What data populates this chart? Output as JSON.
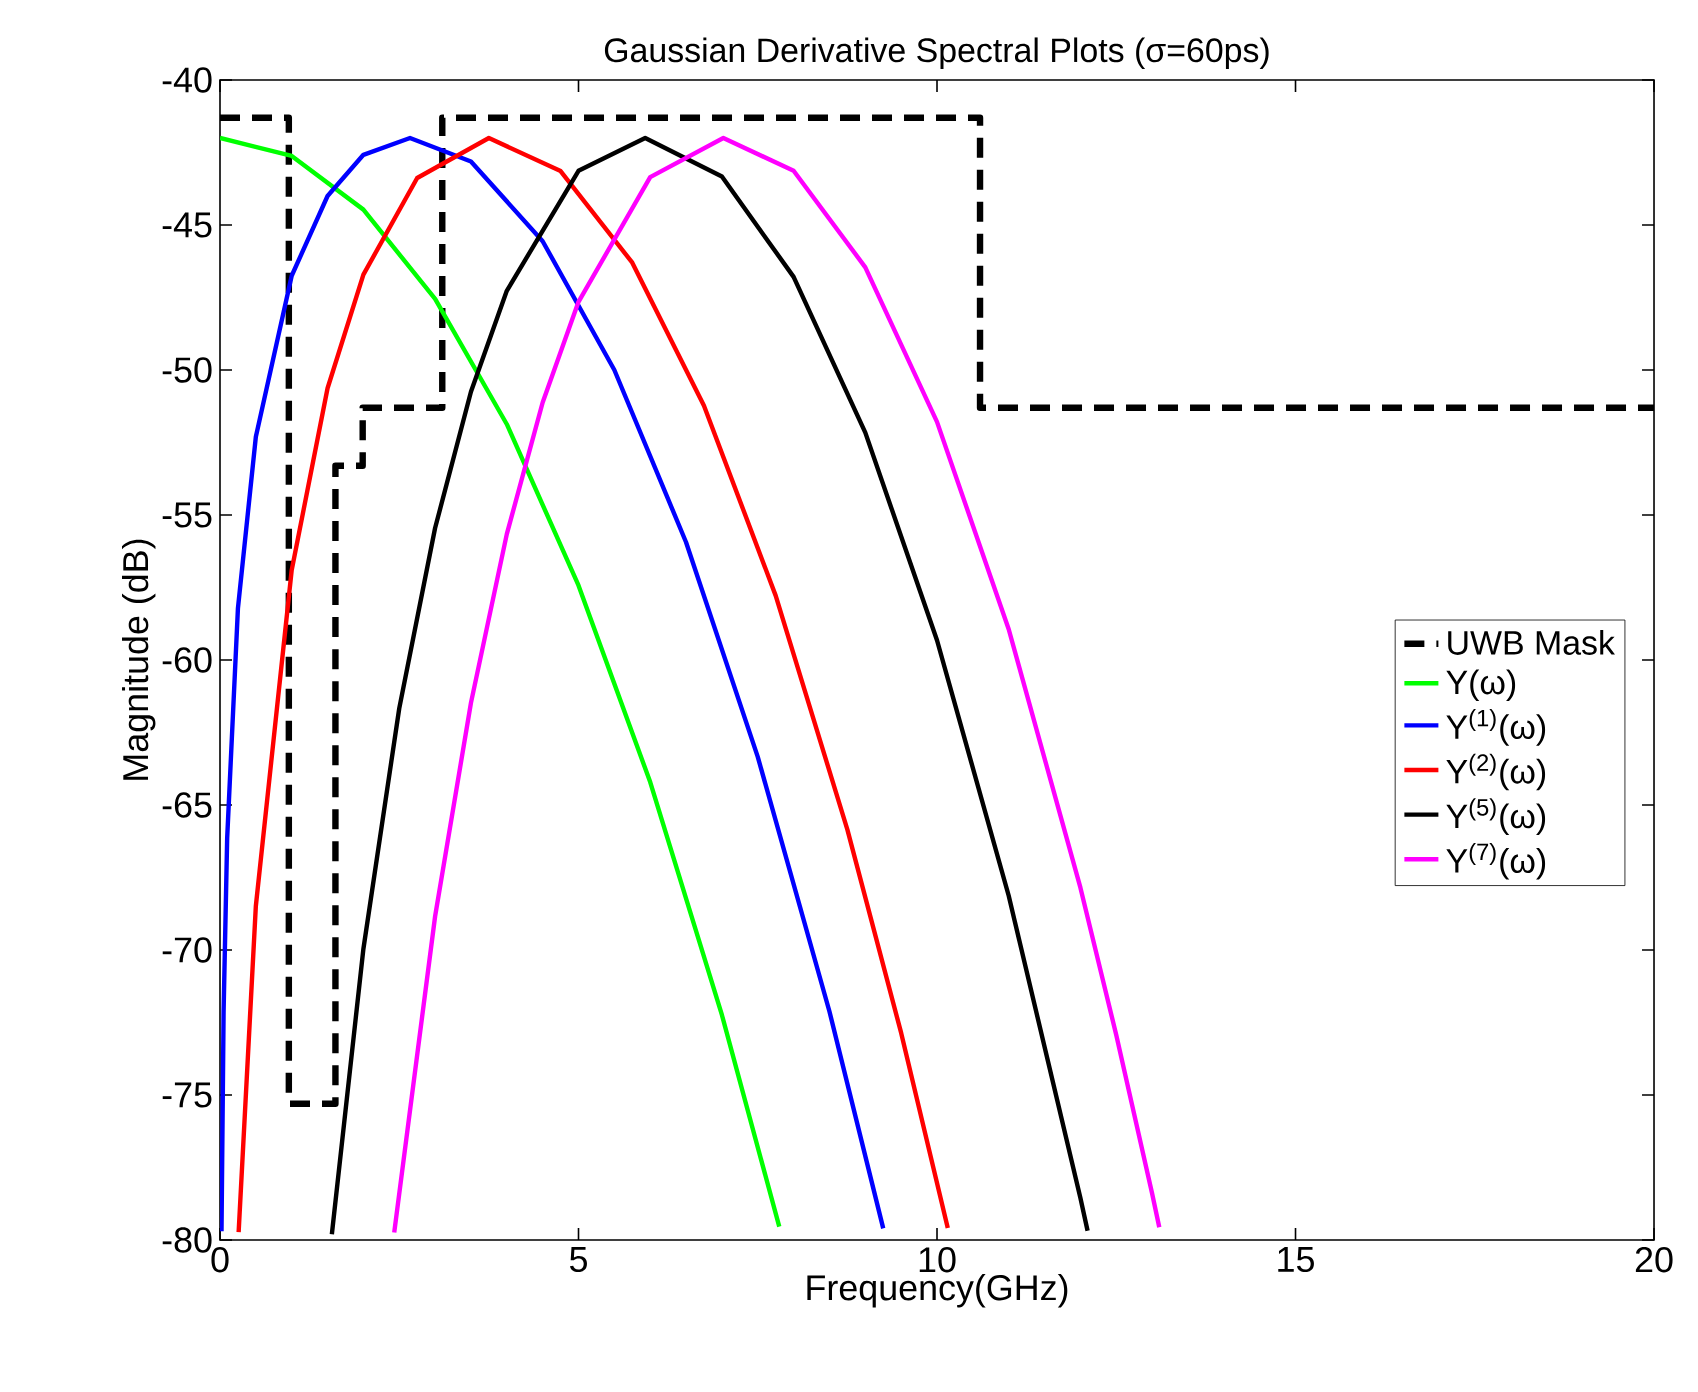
{
  "chart_data": {
    "type": "line",
    "title": "Gaussian Derivative Spectral Plots (σ=60ps)",
    "xlabel": "Frequency(GHz)",
    "ylabel": "Magnitude (dB)",
    "xlim": [
      0,
      20
    ],
    "ylim": [
      -80,
      -40
    ],
    "xticks": [
      0,
      5,
      10,
      15,
      20
    ],
    "yticks": [
      -80,
      -75,
      -70,
      -65,
      -60,
      -55,
      -50,
      -45,
      -40
    ],
    "legend": "right",
    "series": [
      {
        "name": "UWB Mask",
        "type": "step",
        "line_style": "dashed",
        "color": "#000000",
        "x": [
          0,
          0.96,
          1.61,
          1.99,
          3.1,
          10.6,
          20
        ],
        "values": [
          -41.3,
          -75.3,
          -53.3,
          -51.3,
          -41.3,
          -51.3,
          -51.3
        ]
      },
      {
        "name": "Y(ω)",
        "color": "#00ff00",
        "x": [
          0,
          1,
          2,
          3,
          4,
          5,
          6,
          7,
          7.8
        ],
        "values": [
          -42,
          -42.62,
          -44.47,
          -47.55,
          -51.87,
          -57.43,
          -64.21,
          -72.24,
          -79.54
        ]
      },
      {
        "name": "Y$^{(1)}$(ω)",
        "color": "#0000ff",
        "x": [
          0.021,
          0.05,
          0.1,
          0.25,
          0.5,
          1,
          1.5,
          2,
          2.65,
          3.5,
          4.5,
          5.5,
          6.5,
          7.5,
          8.5,
          9.25
        ],
        "values": [
          -79.7,
          -72.15,
          -66.14,
          -58.22,
          -52.3,
          -46.75,
          -44,
          -42.58,
          -42,
          -42.81,
          -45.56,
          -50,
          -55.94,
          -63.34,
          -72.12,
          -79.6
        ]
      },
      {
        "name": "Y$^{(2)}$(ω)",
        "color": "#ff0000",
        "x": [
          0.26,
          0.5,
          1,
          1.5,
          2,
          2.75,
          3.75,
          4.75,
          5.75,
          6.75,
          7.75,
          8.75,
          9.5,
          10.15
        ],
        "values": [
          -79.73,
          -68.48,
          -56.9,
          -50.63,
          -46.71,
          -43.38,
          -42,
          -43.14,
          -46.3,
          -51.23,
          -57.78,
          -65.85,
          -72.86,
          -79.59
        ]
      },
      {
        "name": "Y$^{(5)}$(ω)",
        "color": "#000000",
        "x": [
          1.56,
          2,
          2.5,
          3,
          3.5,
          4,
          5,
          5.93,
          7,
          8,
          9,
          10,
          11,
          12,
          12.1
        ],
        "values": [
          -79.8,
          -69.96,
          -61.67,
          -55.45,
          -50.75,
          -47.27,
          -43.13,
          -42,
          -43.33,
          -46.79,
          -52.16,
          -59.32,
          -68.13,
          -78.55,
          -79.68
        ]
      },
      {
        "name": "Y$^{(7)}$(ω)",
        "color": "#ff00ff",
        "x": [
          2.43,
          3,
          3.5,
          4,
          4.5,
          5,
          6,
          7.02,
          8,
          9,
          10,
          11,
          12,
          12.5,
          13,
          13.1
        ],
        "values": [
          -79.74,
          -68.84,
          -61.48,
          -55.66,
          -51.12,
          -47.65,
          -43.35,
          -42,
          -43.13,
          -46.46,
          -51.79,
          -58.94,
          -67.85,
          -72.93,
          -78.4,
          -79.56
        ]
      }
    ]
  }
}
